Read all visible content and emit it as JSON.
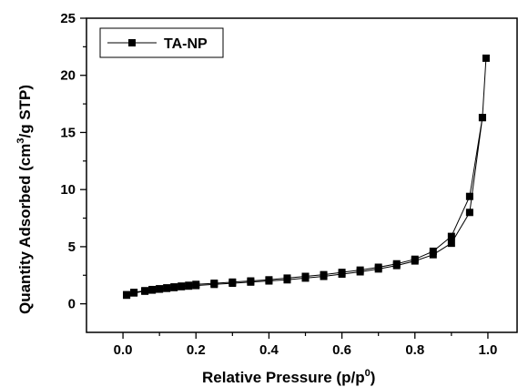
{
  "chart_data": {
    "type": "line",
    "xlabel": "Relative Pressure (p/p",
    "xlabel_sup": "0",
    "xlabel_suffix": ")",
    "ylabel_pre": "Quantity Adsorbed (cm",
    "ylabel_sup": "3",
    "ylabel_post": "/g STP)",
    "xlim": [
      -0.1,
      1.08
    ],
    "ylim": [
      -2.5,
      25
    ],
    "xticks": [
      0.0,
      0.2,
      0.4,
      0.6,
      0.8,
      1.0
    ],
    "xtick_labels": [
      "0.0",
      "0.2",
      "0.4",
      "0.6",
      "0.8",
      "1.0"
    ],
    "yticks": [
      0,
      5,
      10,
      15,
      20,
      25
    ],
    "ytick_labels": [
      "0",
      "5",
      "10",
      "15",
      "20",
      "25"
    ],
    "grid": false,
    "legend_position": "top-left",
    "series": [
      {
        "name": "TA-NP",
        "color": "#000000",
        "marker": "square",
        "x": [
          0.01,
          0.03,
          0.06,
          0.08,
          0.1,
          0.12,
          0.14,
          0.16,
          0.18,
          0.2,
          0.25,
          0.3,
          0.35,
          0.4,
          0.45,
          0.5,
          0.55,
          0.6,
          0.65,
          0.7,
          0.75,
          0.8,
          0.85,
          0.9,
          0.95,
          0.985,
          0.995,
          0.985,
          0.95,
          0.9,
          0.85,
          0.8,
          0.75,
          0.7,
          0.65,
          0.6,
          0.55,
          0.5,
          0.45,
          0.4,
          0.35,
          0.3,
          0.25,
          0.2,
          0.18,
          0.16,
          0.14,
          0.12,
          0.1,
          0.08,
          0.06,
          0.03,
          0.01
        ],
        "y": [
          0.75,
          0.95,
          1.1,
          1.2,
          1.28,
          1.35,
          1.42,
          1.5,
          1.55,
          1.6,
          1.7,
          1.8,
          1.9,
          2.0,
          2.1,
          2.25,
          2.4,
          2.6,
          2.8,
          3.05,
          3.35,
          3.75,
          4.3,
          5.3,
          8.0,
          16.3,
          21.5,
          16.3,
          9.4,
          5.9,
          4.6,
          3.9,
          3.5,
          3.2,
          2.95,
          2.75,
          2.55,
          2.4,
          2.25,
          2.1,
          2.0,
          1.9,
          1.8,
          1.7,
          1.62,
          1.55,
          1.48,
          1.4,
          1.32,
          1.25,
          1.15,
          1.0,
          0.8
        ]
      }
    ]
  }
}
